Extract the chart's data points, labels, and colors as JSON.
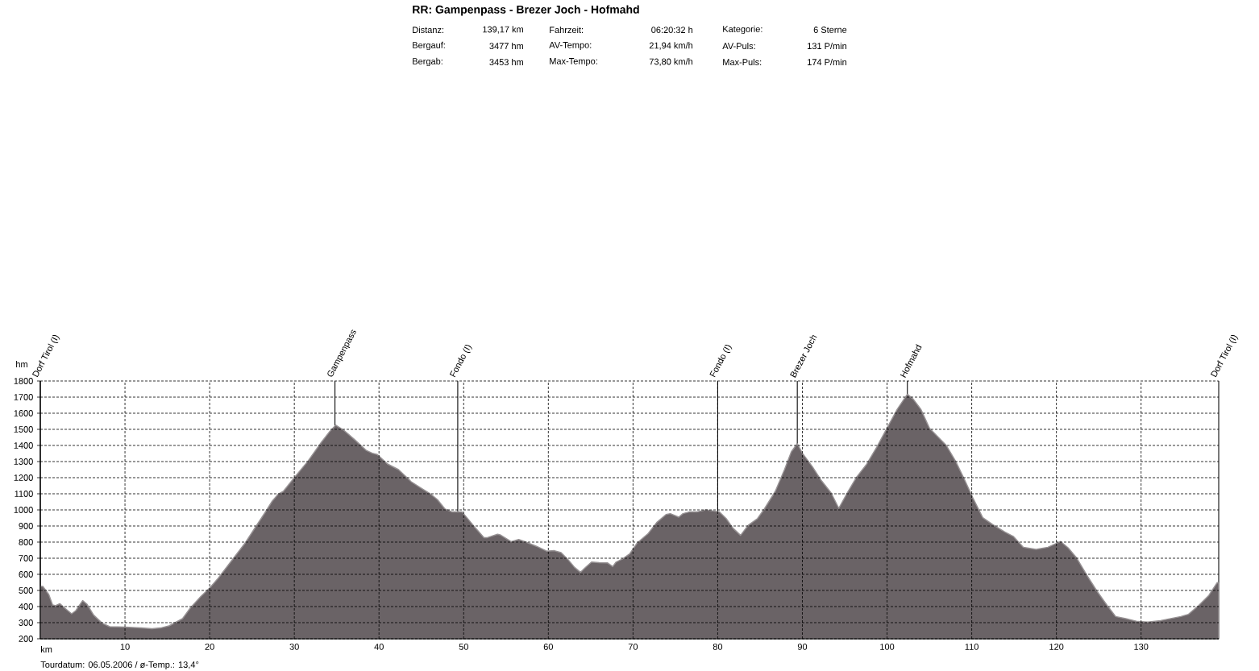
{
  "chart_data": {
    "type": "area",
    "title": "RR: Gampenpass -  Brezer Joch - Hofmahd",
    "annotations": [
      "Distanz:",
      "139,17 km",
      "Fahrzeit:",
      "06:20:32 h",
      "Kategorie:",
      "6 Sterne",
      "Bergauf:",
      "3477 hm",
      "AV-Tempo:",
      "21,94 km/h",
      "AV-Puls:",
      "131 P/min",
      "Bergab:",
      "3453 hm",
      "Max-Tempo:",
      "73,80 km/h",
      "Max-Puls:",
      "174 P/min",
      "Tourdatum: 06.05.2006  /  ø-Temp.: 13,4°"
    ],
    "xlabel": "km",
    "ylabel": "hm",
    "x": [
      0,
      0.3,
      1.0,
      1.45,
      1.8,
      2.3,
      2.9,
      3.7,
      4.2,
      5.0,
      5.5,
      6.3,
      7.3,
      8.2,
      10.0,
      11.9,
      13.2,
      14.2,
      15.2,
      16.1,
      16.8,
      17.7,
      19.0,
      20.0,
      21.0,
      22.6,
      24.2,
      25.5,
      26.5,
      27.4,
      28.1,
      28.7,
      30.0,
      31.6,
      33.2,
      34.2,
      34.9,
      35.8,
      37.1,
      38.5,
      39.2,
      39.8,
      41.0,
      42.3,
      43.8,
      44.8,
      46.1,
      46.9,
      47.8,
      48.6,
      49.8,
      50.6,
      51.4,
      52.4,
      52.8,
      54.0,
      54.3,
      55.6,
      56.5,
      57.3,
      58.6,
      59.8,
      60.7,
      61.5,
      62.3,
      63.1,
      63.8,
      64.3,
      65.1,
      66.0,
      67.0,
      67.6,
      68.0,
      68.8,
      69.6,
      70.5,
      71.8,
      72.8,
      73.9,
      74.4,
      75.4,
      75.9,
      76.7,
      77.6,
      78.6,
      79.5,
      80.2,
      81.0,
      81.8,
      82.7,
      83.6,
      84.7,
      85.5,
      86.8,
      87.9,
      88.7,
      89.4,
      90.0,
      91.2,
      92.2,
      93.4,
      94.3,
      95.4,
      96.4,
      97.6,
      98.8,
      100.0,
      101.2,
      102.4,
      103.1,
      104.0,
      105.0,
      106.0,
      107.0,
      108.1,
      109.1,
      110.1,
      111.3,
      112.5,
      113.9,
      114.9,
      116.1,
      117.6,
      119.0,
      120.5,
      121.4,
      122.4,
      123.6,
      124.8,
      126.0,
      127.0,
      128.2,
      129.6,
      130.8,
      132.3,
      134.7,
      135.6,
      136.8,
      138.0,
      139.0,
      139.17
    ],
    "values": [
      525,
      525,
      475,
      410,
      405,
      418,
      390,
      355,
      375,
      437,
      415,
      347,
      297,
      275,
      272,
      267,
      263,
      267,
      280,
      305,
      325,
      390,
      465,
      515,
      575,
      685,
      795,
      900,
      980,
      1055,
      1098,
      1115,
      1200,
      1302,
      1420,
      1488,
      1526,
      1496,
      1437,
      1369,
      1352,
      1344,
      1285,
      1250,
      1175,
      1141,
      1098,
      1064,
      1005,
      988,
      988,
      938,
      887,
      828,
      828,
      849,
      845,
      803,
      816,
      801,
      774,
      744,
      747,
      735,
      693,
      643,
      612,
      639,
      676,
      673,
      671,
      648,
      676,
      697,
      727,
      795,
      854,
      922,
      971,
      977,
      955,
      977,
      988,
      988,
      1000,
      993,
      988,
      946,
      887,
      842,
      904,
      946,
      1005,
      1115,
      1251,
      1361,
      1411,
      1352,
      1267,
      1185,
      1105,
      1010,
      1114,
      1203,
      1284,
      1391,
      1508,
      1624,
      1718,
      1687,
      1624,
      1508,
      1454,
      1400,
      1302,
      1194,
      1078,
      952,
      908,
      863,
      836,
      768,
      755,
      768,
      804,
      764,
      701,
      594,
      495,
      406,
      338,
      325,
      307,
      304,
      313,
      338,
      352,
      406,
      469,
      549,
      545
    ],
    "color": "#6a6366",
    "xlim": [
      0,
      139.17
    ],
    "ylim": [
      200,
      1800
    ],
    "xticks": [
      10,
      20,
      30,
      40,
      50,
      60,
      70,
      80,
      90,
      100,
      110,
      120,
      130
    ],
    "yticks": [
      200,
      300,
      400,
      500,
      600,
      700,
      800,
      900,
      1000,
      1100,
      1200,
      1300,
      1400,
      1500,
      1600,
      1700,
      1800
    ],
    "grid": true,
    "ref_lines": [
      {
        "axis": "x",
        "value": 0,
        "label": "Dorf Tirol (I)",
        "color": "#000000"
      },
      {
        "axis": "x",
        "value": 34.8,
        "label": "Gampenpass",
        "color": "#000000"
      },
      {
        "axis": "x",
        "value": 49.3,
        "label": "Fondo (I)",
        "color": "#000000"
      },
      {
        "axis": "x",
        "value": 80.0,
        "label": "Fondo (I)",
        "color": "#000000"
      },
      {
        "axis": "x",
        "value": 89.4,
        "label": "Brezer Joch",
        "color": "#000000"
      },
      {
        "axis": "x",
        "value": 102.4,
        "label": "Hofmahd",
        "color": "#000000"
      },
      {
        "axis": "x",
        "value": 139.17,
        "label": "Dorf Tirol (I)",
        "color": "#000000"
      }
    ]
  }
}
